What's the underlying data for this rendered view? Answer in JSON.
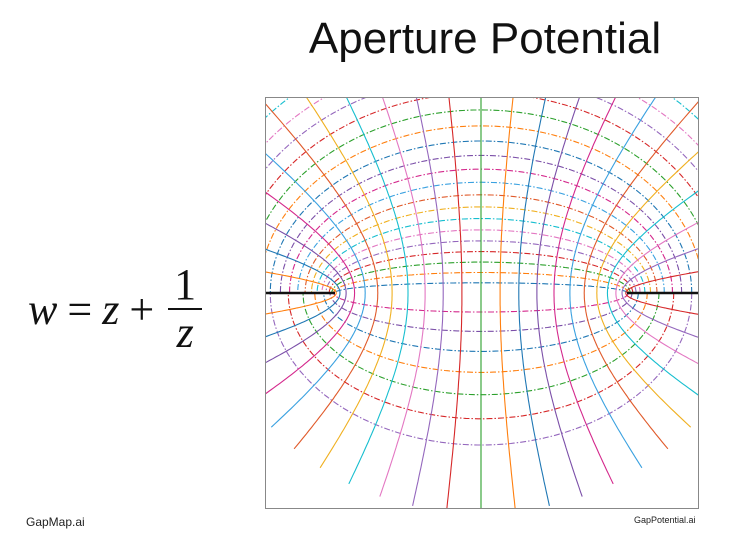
{
  "title": "Aperture Potential",
  "equation": {
    "lhs": "w",
    "eq": "=",
    "z": "z",
    "plus": "+",
    "numerator": "1",
    "denominator": "z"
  },
  "footer": {
    "left": "GapMap.ai",
    "right": "GapPotential.ai"
  },
  "colors": {
    "palette": [
      "#1f77b4",
      "#ff7f0e",
      "#2ca02c",
      "#d62728",
      "#9467bd",
      "#e377c2",
      "#17becf",
      "#f0b020",
      "#e05a2a",
      "#3aa1e0",
      "#d4288c",
      "#7b4fa8"
    ],
    "aperture": "#111111",
    "frame": "#888888"
  }
}
